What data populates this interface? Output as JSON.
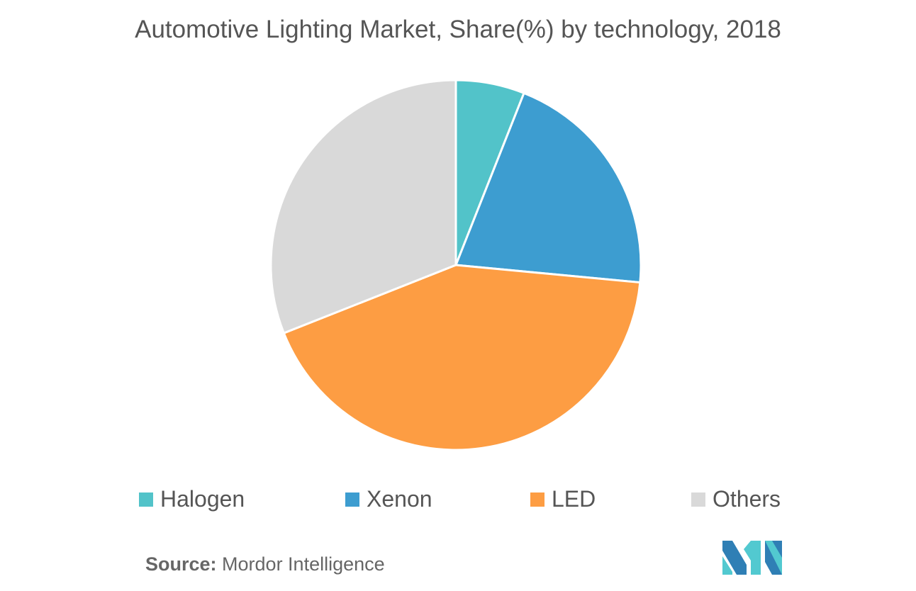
{
  "chart_data": {
    "type": "pie",
    "title": "Automotive Lighting Market, Share(%) by technology, 2018",
    "categories": [
      "Halogen",
      "Xenon",
      "LED",
      "Others"
    ],
    "values": [
      6,
      20.5,
      42.5,
      31
    ],
    "colors": [
      "#52c3c9",
      "#3d9dd0",
      "#fd9d43",
      "#d9d9d9"
    ],
    "legend_position": "bottom",
    "start_angle": "12 o'clock, clockwise"
  },
  "source": {
    "label": "Source:",
    "text": " Mordor Intelligence"
  },
  "logo": {
    "name": "Mordor Intelligence logo",
    "colors": [
      "#2f7fb5",
      "#52c9d0"
    ]
  }
}
